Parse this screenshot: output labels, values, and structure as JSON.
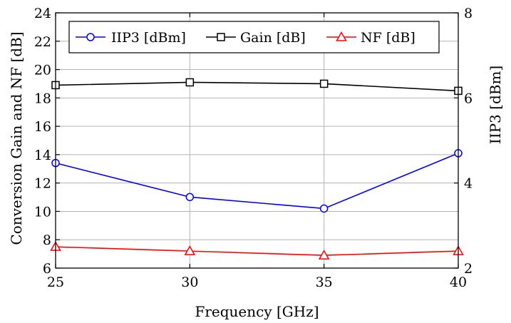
{
  "chart_data": {
    "type": "line",
    "title": "",
    "x": [
      25,
      30,
      35,
      40
    ],
    "xlabel": "Frequency [GHz]",
    "xlim": [
      25,
      40
    ],
    "xticks": [
      "25",
      "30",
      "35",
      "40"
    ],
    "ylabel_left": "Conversion Gain and NF [dB]",
    "ylim_left": [
      6,
      24
    ],
    "yticks_left": [
      "6",
      "8",
      "10",
      "12",
      "14",
      "16",
      "18",
      "20",
      "22",
      "24"
    ],
    "ylabel_right": "IIP3 [dBm]",
    "ylim_right": [
      2,
      8
    ],
    "yticks_right": [
      "2",
      "4",
      "6",
      "8"
    ],
    "grid": true,
    "legend_position": "top",
    "series": [
      {
        "name": "IIP3 [dBm]",
        "axis": "right",
        "color": "#0000ff",
        "marker": "circle",
        "values": [
          4.47,
          3.67,
          3.4,
          4.7
        ]
      },
      {
        "name": "Gain [dB]",
        "axis": "left",
        "color": "#000000",
        "marker": "square",
        "values": [
          18.9,
          19.1,
          19.0,
          18.5
        ]
      },
      {
        "name": "NF [dB]",
        "axis": "left",
        "color": "#ff0000",
        "marker": "triangle",
        "values": [
          7.5,
          7.2,
          6.9,
          7.2
        ]
      }
    ]
  }
}
